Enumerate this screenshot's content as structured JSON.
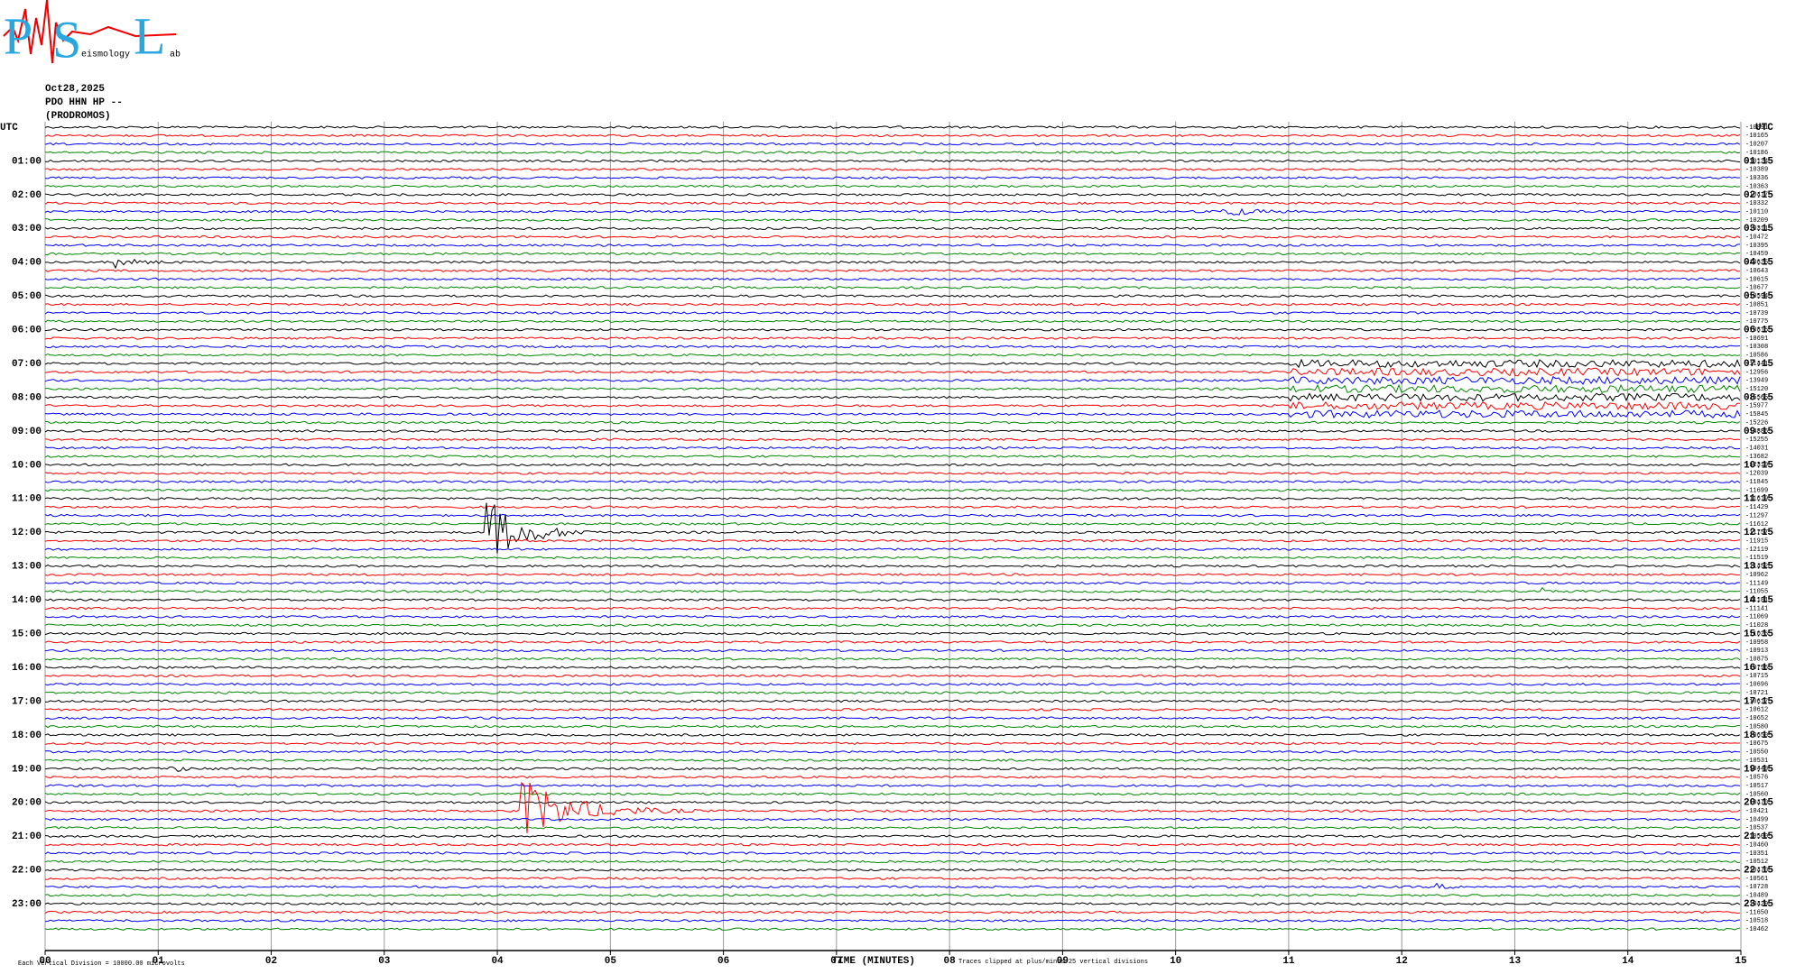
{
  "logo": {
    "letters": [
      "P",
      "S",
      "L"
    ],
    "small": [
      "eismology",
      "ab"
    ]
  },
  "header": {
    "date": "Oct28,2025",
    "station": "PDO HHN HP --",
    "location": "(PRODROMOS)"
  },
  "left_title": "UTC",
  "right_title": "UTC",
  "left_hours": [
    "01:00",
    "02:00",
    "03:00",
    "04:00",
    "05:00",
    "06:00",
    "07:00",
    "08:00",
    "09:00",
    "10:00",
    "11:00",
    "12:00",
    "13:00",
    "14:00",
    "15:00",
    "16:00",
    "17:00",
    "18:00",
    "19:00",
    "20:00",
    "21:00",
    "22:00",
    "23:00"
  ],
  "right_hours": [
    "01:15",
    "02:15",
    "03:15",
    "04:15",
    "05:15",
    "06:15",
    "07:15",
    "08:15",
    "09:15",
    "10:15",
    "11:15",
    "12:15",
    "13:15",
    "14:15",
    "15:15",
    "16:15",
    "17:15",
    "18:15",
    "19:15",
    "20:15",
    "21:15",
    "22:15",
    "23:15"
  ],
  "row_values": [
    -10091,
    -10165,
    -10207,
    -10186,
    -10124,
    -10389,
    -10336,
    -10363,
    -10417,
    -10332,
    -10110,
    -10209,
    -10311,
    -10472,
    -10395,
    -10459,
    -10625,
    -10643,
    -10615,
    -10677,
    -10594,
    -10851,
    -10739,
    -10775,
    -10815,
    -10691,
    -10308,
    -10586,
    -11441,
    -12956,
    -13949,
    -15120,
    -15565,
    -15977,
    -15845,
    -15226,
    -14886,
    -15255,
    -14031,
    -13682,
    -12319,
    -12039,
    -11845,
    -11699,
    -11619,
    -11429,
    -11297,
    -11612,
    -11757,
    -11915,
    -12119,
    -11519,
    -11452,
    -10962,
    -11149,
    -11055,
    -11181,
    -11141,
    -11069,
    -11028,
    -11026,
    -10958,
    -10913,
    -10875,
    -10795,
    -10715,
    -10696,
    -10721,
    -10617,
    -10612,
    -10652,
    -10580,
    -10650,
    -10675,
    -10550,
    -10531,
    -10449,
    -10576,
    -10517,
    -10560,
    -10470,
    -10421,
    -10499,
    -10537,
    -10500,
    -10460,
    -10351,
    -10512,
    -10470,
    -10561,
    -10728,
    -10489,
    -10429,
    -11650,
    -10518,
    -10462
  ],
  "minutes": [
    "00",
    "01",
    "02",
    "03",
    "04",
    "05",
    "06",
    "07",
    "08",
    "09",
    "10",
    "11",
    "12",
    "13",
    "14",
    "15"
  ],
  "footer": {
    "scale": "Each Vertical Division = 10000.00 microvolts",
    "axis_title": "TIME (MINUTES)",
    "clip": "Traces clipped at plus/minus 25 vertical divisions"
  }
}
